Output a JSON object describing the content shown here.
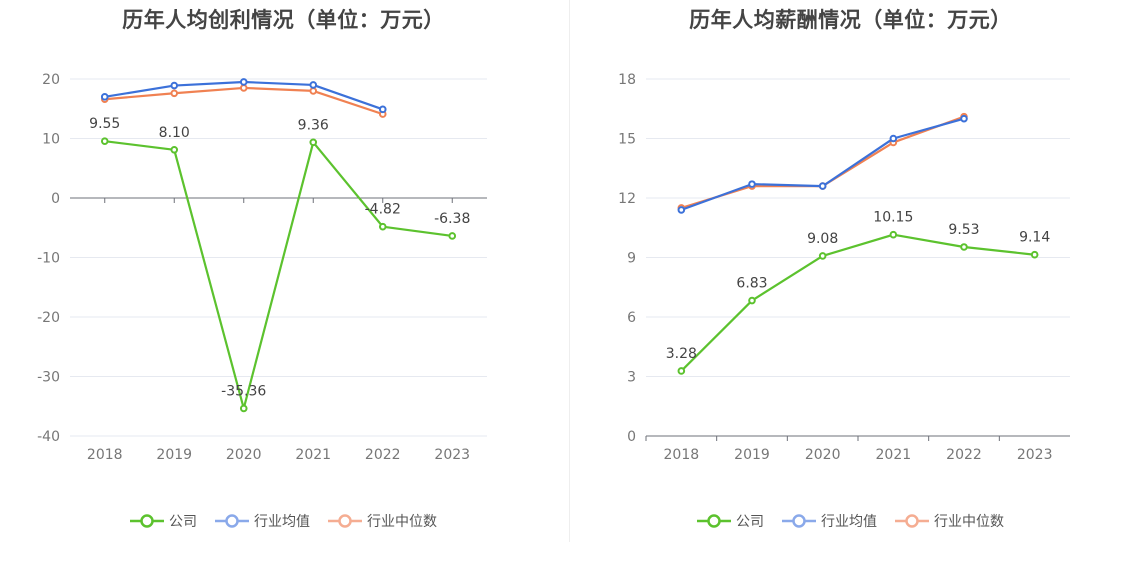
{
  "chart_data": [
    {
      "type": "line",
      "title": "历年人均创利情况（单位：万元）",
      "categories": [
        "2018",
        "2019",
        "2020",
        "2021",
        "2022",
        "2023"
      ],
      "ylim": [
        -40,
        20
      ],
      "yticks": [
        20,
        10,
        0,
        -10,
        -20,
        -30,
        -40
      ],
      "series": [
        {
          "name": "公司",
          "color": "#5cc22e",
          "values": [
            9.55,
            8.1,
            -35.36,
            9.36,
            -4.82,
            -6.38
          ],
          "labels": [
            "9.55",
            "8.10",
            "-35.36",
            "9.36",
            "-4.82",
            "-6.38"
          ]
        },
        {
          "name": "行业均值",
          "color": "#3c71d9",
          "values": [
            17.0,
            18.9,
            19.5,
            19.0,
            14.9,
            null
          ]
        },
        {
          "name": "行业中位数",
          "color": "#f08152",
          "values": [
            16.6,
            17.6,
            18.5,
            18.0,
            14.1,
            null
          ]
        }
      ]
    },
    {
      "type": "line",
      "title": "历年人均薪酬情况（单位：万元）",
      "categories": [
        "2018",
        "2019",
        "2020",
        "2021",
        "2022",
        "2023"
      ],
      "ylim": [
        0,
        18
      ],
      "yticks": [
        18,
        15,
        12,
        9,
        6,
        3,
        0
      ],
      "series": [
        {
          "name": "公司",
          "color": "#5cc22e",
          "values": [
            3.28,
            6.83,
            9.08,
            10.15,
            9.53,
            9.14
          ],
          "labels": [
            "3.28",
            "6.83",
            "9.08",
            "10.15",
            "9.53",
            "9.14"
          ]
        },
        {
          "name": "行业均值",
          "color": "#3c71d9",
          "values": [
            11.4,
            12.7,
            12.6,
            15.0,
            16.0,
            null
          ]
        },
        {
          "name": "行业中位数",
          "color": "#f08152",
          "values": [
            11.5,
            12.6,
            12.6,
            14.8,
            16.1,
            null
          ]
        }
      ]
    }
  ],
  "legend": [
    {
      "name": "公司",
      "color": "#5cc22e"
    },
    {
      "name": "行业均值",
      "color": "#8aa9ea"
    },
    {
      "name": "行业中位数",
      "color": "#f5ad92"
    }
  ]
}
